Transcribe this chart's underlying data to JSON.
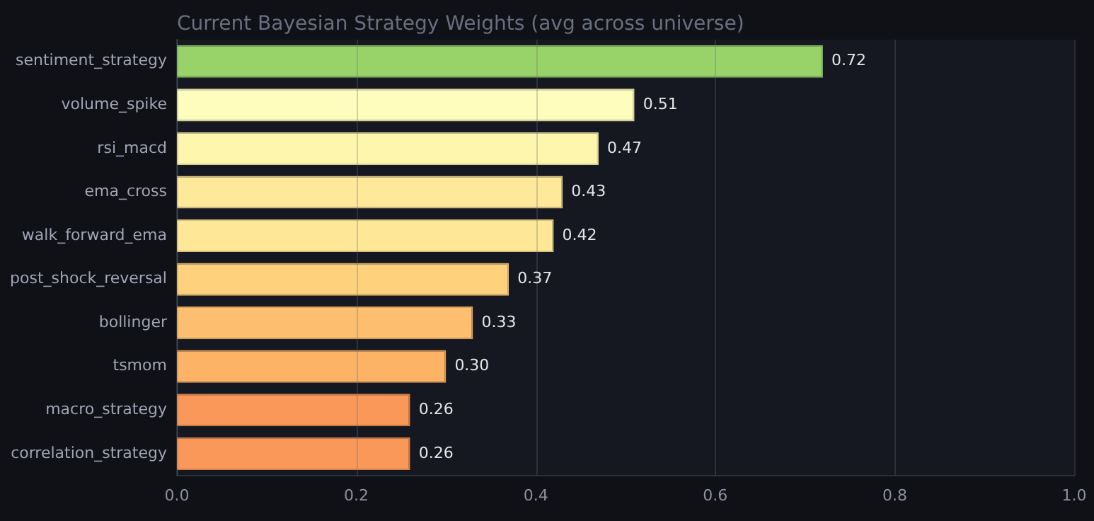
{
  "chart_data": {
    "type": "bar",
    "orientation": "horizontal",
    "title": "Current Bayesian Strategy Weights (avg across universe)",
    "categories": [
      "sentiment_strategy",
      "volume_spike",
      "rsi_macd",
      "ema_cross",
      "walk_forward_ema",
      "post_shock_reversal",
      "bollinger",
      "tsmom",
      "macro_strategy",
      "correlation_strategy"
    ],
    "values": [
      0.72,
      0.51,
      0.47,
      0.43,
      0.42,
      0.37,
      0.33,
      0.3,
      0.26,
      0.26
    ],
    "colors": [
      "#98d36a",
      "#fefdbd",
      "#fef6ad",
      "#fee99a",
      "#fee797",
      "#fed27c",
      "#fdbf6f",
      "#fdb366",
      "#f99858",
      "#f99858"
    ],
    "xlim": [
      0,
      1
    ],
    "xticks": [
      {
        "value": 0,
        "label": "0.0"
      },
      {
        "value": 0.2,
        "label": "0.2"
      },
      {
        "value": 0.4,
        "label": "0.4"
      },
      {
        "value": 0.6,
        "label": "0.6"
      },
      {
        "value": 0.8,
        "label": "0.8"
      },
      {
        "value": 1,
        "label": "1.0"
      }
    ],
    "value_labels": [
      "0.72",
      "0.51",
      "0.47",
      "0.43",
      "0.42",
      "0.37",
      "0.33",
      "0.30",
      "0.26",
      "0.26"
    ],
    "grid": "x",
    "legend": false
  }
}
